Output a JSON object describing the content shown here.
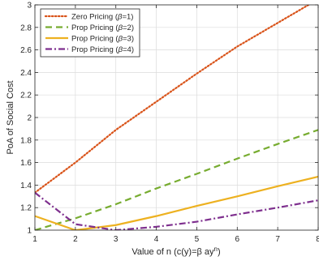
{
  "chart_data": {
    "type": "line",
    "title": "",
    "xlabel": "Value of n (c(y)=β ay",
    "xlabel_sup": "n",
    "xlabel_close": ")",
    "ylabel": "PoA of Social Cost",
    "xlim": [
      1,
      8
    ],
    "ylim": [
      1,
      3
    ],
    "xticks": [
      1,
      2,
      3,
      4,
      5,
      6,
      7,
      8
    ],
    "yticks": [
      1,
      1.2,
      1.4,
      1.6,
      1.8,
      2,
      2.2,
      2.4,
      2.6,
      2.8,
      3
    ],
    "xtick_labels": [
      "1",
      "2",
      "3",
      "4",
      "5",
      "6",
      "7",
      "8"
    ],
    "ytick_labels": [
      "1",
      "1.2",
      "1.4",
      "1.6",
      "1.8",
      "2",
      "2.2",
      "2.4",
      "2.6",
      "2.8",
      "3"
    ],
    "grid": true,
    "legend_position": "top-left",
    "series": [
      {
        "name": "Zero Pricing (β=1)",
        "label_main": "Zero Pricing (",
        "label_sym": "β",
        "label_tail": "=1)",
        "color": "#D95319",
        "style": "dotted",
        "x": [
          1,
          2,
          3,
          4,
          5,
          6,
          7,
          8
        ],
        "y": [
          1.333,
          1.6,
          1.89,
          2.14,
          2.39,
          2.63,
          2.84,
          3.05
        ]
      },
      {
        "name": "Prop Pricing (β=2)",
        "label_main": "Prop Pricing (",
        "label_sym": "β",
        "label_tail": "=2)",
        "color": "#77AC30",
        "style": "dashed",
        "x": [
          1,
          2,
          3,
          4,
          5,
          6,
          7,
          8
        ],
        "y": [
          1.0,
          1.105,
          1.23,
          1.37,
          1.5,
          1.635,
          1.765,
          1.89
        ]
      },
      {
        "name": "Prop Pricing (β=3)",
        "label_main": "Prop Pricing (",
        "label_sym": "β",
        "label_tail": "=3)",
        "color": "#EDB120",
        "style": "solid",
        "x": [
          1,
          2,
          3,
          4,
          5,
          6,
          7,
          8
        ],
        "y": [
          1.125,
          1.0,
          1.045,
          1.125,
          1.215,
          1.3,
          1.39,
          1.475
        ]
      },
      {
        "name": "Prop Pricing (β=4)",
        "label_main": "Prop Pricing (",
        "label_sym": "β",
        "label_tail": "=4)",
        "color": "#7E2F8E",
        "style": "dashdot",
        "x": [
          1,
          2,
          3,
          4,
          5,
          6,
          7,
          8
        ],
        "y": [
          1.333,
          1.053,
          1.0,
          1.03,
          1.075,
          1.14,
          1.2,
          1.265
        ]
      }
    ]
  }
}
